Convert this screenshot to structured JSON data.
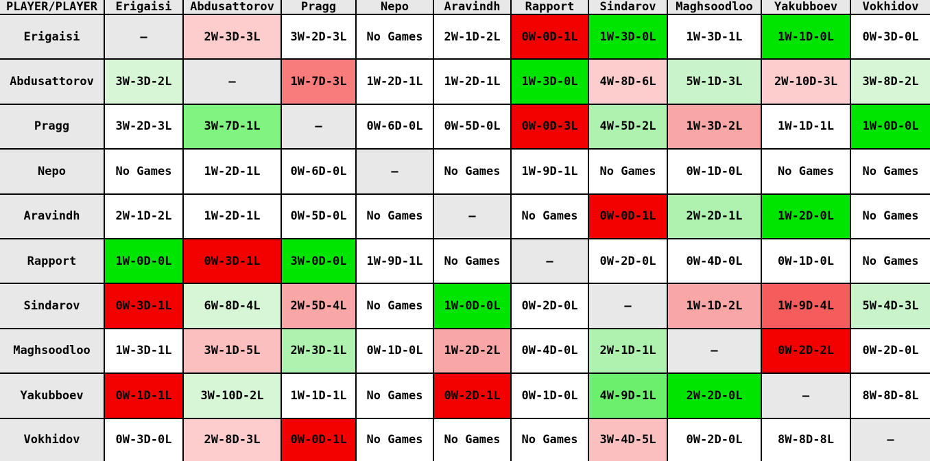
{
  "table": {
    "corner_label": "PLAYER/PLAYER",
    "players": [
      "Erigaisi",
      "Abdusattorov",
      "Pragg",
      "Nepo",
      "Aravindh",
      "Rapport",
      "Sindarov",
      "Maghsoodloo",
      "Yakubboev",
      "Vokhidov"
    ],
    "self_marker": "–",
    "no_games_label": "No Games",
    "palette": {
      "gray": "#e8e8e8",
      "white": "#ffffff",
      "g20": "#d6f6d6",
      "g25": "#c9f4c9",
      "g33": "#aff2af",
      "g50": "#80f380",
      "g60": "#6cef6c",
      "g100": "#00e500",
      "r20": "#fdcccc",
      "r25": "#fbbfbf",
      "r33": "#f8a6a6",
      "r50": "#f97c7c",
      "r60": "#f55c5c",
      "r100": "#f20000"
    },
    "rows": [
      {
        "player": "Erigaisi",
        "cells": [
          {
            "v": "–",
            "c": "gray"
          },
          {
            "v": "2W-3D-3L",
            "c": "r20"
          },
          {
            "v": "3W-2D-3L",
            "c": "white"
          },
          {
            "v": "No Games",
            "c": "white"
          },
          {
            "v": "2W-1D-2L",
            "c": "white"
          },
          {
            "v": "0W-0D-1L",
            "c": "r100"
          },
          {
            "v": "1W-3D-0L",
            "c": "g100"
          },
          {
            "v": "1W-3D-1L",
            "c": "white"
          },
          {
            "v": "1W-1D-0L",
            "c": "g100"
          },
          {
            "v": "0W-3D-0L",
            "c": "white"
          }
        ]
      },
      {
        "player": "Abdusattorov",
        "cells": [
          {
            "v": "3W-3D-2L",
            "c": "g20"
          },
          {
            "v": "–",
            "c": "gray"
          },
          {
            "v": "1W-7D-3L",
            "c": "r50"
          },
          {
            "v": "1W-2D-1L",
            "c": "white"
          },
          {
            "v": "1W-2D-1L",
            "c": "white"
          },
          {
            "v": "1W-3D-0L",
            "c": "g100"
          },
          {
            "v": "4W-8D-6L",
            "c": "r20"
          },
          {
            "v": "5W-1D-3L",
            "c": "g25"
          },
          {
            "v": "2W-10D-3L",
            "c": "r20"
          },
          {
            "v": "3W-8D-2L",
            "c": "g20"
          }
        ]
      },
      {
        "player": "Pragg",
        "cells": [
          {
            "v": "3W-2D-3L",
            "c": "white"
          },
          {
            "v": "3W-7D-1L",
            "c": "g50"
          },
          {
            "v": "–",
            "c": "gray"
          },
          {
            "v": "0W-6D-0L",
            "c": "white"
          },
          {
            "v": "0W-5D-0L",
            "c": "white"
          },
          {
            "v": "0W-0D-3L",
            "c": "r100"
          },
          {
            "v": "4W-5D-2L",
            "c": "g33"
          },
          {
            "v": "1W-3D-2L",
            "c": "r33"
          },
          {
            "v": "1W-1D-1L",
            "c": "white"
          },
          {
            "v": "1W-0D-0L",
            "c": "g100"
          }
        ]
      },
      {
        "player": "Nepo",
        "cells": [
          {
            "v": "No Games",
            "c": "white"
          },
          {
            "v": "1W-2D-1L",
            "c": "white"
          },
          {
            "v": "0W-6D-0L",
            "c": "white"
          },
          {
            "v": "–",
            "c": "gray"
          },
          {
            "v": "No Games",
            "c": "white"
          },
          {
            "v": "1W-9D-1L",
            "c": "white"
          },
          {
            "v": "No Games",
            "c": "white"
          },
          {
            "v": "0W-1D-0L",
            "c": "white"
          },
          {
            "v": "No Games",
            "c": "white"
          },
          {
            "v": "No Games",
            "c": "white"
          }
        ]
      },
      {
        "player": "Aravindh",
        "cells": [
          {
            "v": "2W-1D-2L",
            "c": "white"
          },
          {
            "v": "1W-2D-1L",
            "c": "white"
          },
          {
            "v": "0W-5D-0L",
            "c": "white"
          },
          {
            "v": "No Games",
            "c": "white"
          },
          {
            "v": "–",
            "c": "gray"
          },
          {
            "v": "No Games",
            "c": "white"
          },
          {
            "v": "0W-0D-1L",
            "c": "r100"
          },
          {
            "v": "2W-2D-1L",
            "c": "g33"
          },
          {
            "v": "1W-2D-0L",
            "c": "g100"
          },
          {
            "v": "No Games",
            "c": "white"
          }
        ]
      },
      {
        "player": "Rapport",
        "cells": [
          {
            "v": "1W-0D-0L",
            "c": "g100"
          },
          {
            "v": "0W-3D-1L",
            "c": "r100"
          },
          {
            "v": "3W-0D-0L",
            "c": "g100"
          },
          {
            "v": "1W-9D-1L",
            "c": "white"
          },
          {
            "v": "No Games",
            "c": "white"
          },
          {
            "v": "–",
            "c": "gray"
          },
          {
            "v": "0W-2D-0L",
            "c": "white"
          },
          {
            "v": "0W-4D-0L",
            "c": "white"
          },
          {
            "v": "0W-1D-0L",
            "c": "white"
          },
          {
            "v": "No Games",
            "c": "white"
          }
        ]
      },
      {
        "player": "Sindarov",
        "cells": [
          {
            "v": "0W-3D-1L",
            "c": "r100"
          },
          {
            "v": "6W-8D-4L",
            "c": "g20"
          },
          {
            "v": "2W-5D-4L",
            "c": "r33"
          },
          {
            "v": "No Games",
            "c": "white"
          },
          {
            "v": "1W-0D-0L",
            "c": "g100"
          },
          {
            "v": "0W-2D-0L",
            "c": "white"
          },
          {
            "v": "–",
            "c": "gray"
          },
          {
            "v": "1W-1D-2L",
            "c": "r33"
          },
          {
            "v": "1W-9D-4L",
            "c": "r60"
          },
          {
            "v": "5W-4D-3L",
            "c": "g25"
          }
        ]
      },
      {
        "player": "Maghsoodloo",
        "cells": [
          {
            "v": "1W-3D-1L",
            "c": "white"
          },
          {
            "v": "3W-1D-5L",
            "c": "r25"
          },
          {
            "v": "2W-3D-1L",
            "c": "g33"
          },
          {
            "v": "0W-1D-0L",
            "c": "white"
          },
          {
            "v": "1W-2D-2L",
            "c": "r33"
          },
          {
            "v": "0W-4D-0L",
            "c": "white"
          },
          {
            "v": "2W-1D-1L",
            "c": "g33"
          },
          {
            "v": "–",
            "c": "gray"
          },
          {
            "v": "0W-2D-2L",
            "c": "r100"
          },
          {
            "v": "0W-2D-0L",
            "c": "white"
          }
        ]
      },
      {
        "player": "Yakubboev",
        "cells": [
          {
            "v": "0W-1D-1L",
            "c": "r100"
          },
          {
            "v": "3W-10D-2L",
            "c": "g20"
          },
          {
            "v": "1W-1D-1L",
            "c": "white"
          },
          {
            "v": "No Games",
            "c": "white"
          },
          {
            "v": "0W-2D-1L",
            "c": "r100"
          },
          {
            "v": "0W-1D-0L",
            "c": "white"
          },
          {
            "v": "4W-9D-1L",
            "c": "g60"
          },
          {
            "v": "2W-2D-0L",
            "c": "g100"
          },
          {
            "v": "–",
            "c": "gray"
          },
          {
            "v": "8W-8D-8L",
            "c": "white"
          }
        ]
      },
      {
        "player": "Vokhidov",
        "cells": [
          {
            "v": "0W-3D-0L",
            "c": "white"
          },
          {
            "v": "2W-8D-3L",
            "c": "r20"
          },
          {
            "v": "0W-0D-1L",
            "c": "r100"
          },
          {
            "v": "No Games",
            "c": "white"
          },
          {
            "v": "No Games",
            "c": "white"
          },
          {
            "v": "No Games",
            "c": "white"
          },
          {
            "v": "3W-4D-5L",
            "c": "r25"
          },
          {
            "v": "0W-2D-0L",
            "c": "white"
          },
          {
            "v": "8W-8D-8L",
            "c": "white"
          },
          {
            "v": "–",
            "c": "gray"
          }
        ]
      }
    ]
  },
  "chart_data": {
    "type": "table",
    "corner_label": "PLAYER/PLAYER",
    "columns": [
      "Erigaisi",
      "Abdusattorov",
      "Pragg",
      "Nepo",
      "Aravindh",
      "Rapport",
      "Sindarov",
      "Maghsoodloo",
      "Yakubboev",
      "Vokhidov"
    ],
    "rows": [
      "Erigaisi",
      "Abdusattorov",
      "Pragg",
      "Nepo",
      "Aravindh",
      "Rapport",
      "Sindarov",
      "Maghsoodloo",
      "Yakubboev",
      "Vokhidov"
    ],
    "records": [
      [
        "–",
        "2W-3D-3L",
        "3W-2D-3L",
        "No Games",
        "2W-1D-2L",
        "0W-0D-1L",
        "1W-3D-0L",
        "1W-3D-1L",
        "1W-1D-0L",
        "0W-3D-0L"
      ],
      [
        "3W-3D-2L",
        "–",
        "1W-7D-3L",
        "1W-2D-1L",
        "1W-2D-1L",
        "1W-3D-0L",
        "4W-8D-6L",
        "5W-1D-3L",
        "2W-10D-3L",
        "3W-8D-2L"
      ],
      [
        "3W-2D-3L",
        "3W-7D-1L",
        "–",
        "0W-6D-0L",
        "0W-5D-0L",
        "0W-0D-3L",
        "4W-5D-2L",
        "1W-3D-2L",
        "1W-1D-1L",
        "1W-0D-0L"
      ],
      [
        "No Games",
        "1W-2D-1L",
        "0W-6D-0L",
        "–",
        "No Games",
        "1W-9D-1L",
        "No Games",
        "0W-1D-0L",
        "No Games",
        "No Games"
      ],
      [
        "2W-1D-2L",
        "1W-2D-1L",
        "0W-5D-0L",
        "No Games",
        "–",
        "No Games",
        "0W-0D-1L",
        "2W-2D-1L",
        "1W-2D-0L",
        "No Games"
      ],
      [
        "1W-0D-0L",
        "0W-3D-1L",
        "3W-0D-0L",
        "1W-9D-1L",
        "No Games",
        "–",
        "0W-2D-0L",
        "0W-4D-0L",
        "0W-1D-0L",
        "No Games"
      ],
      [
        "0W-3D-1L",
        "6W-8D-4L",
        "2W-5D-4L",
        "No Games",
        "1W-0D-0L",
        "0W-2D-0L",
        "–",
        "1W-1D-2L",
        "1W-9D-4L",
        "5W-4D-3L"
      ],
      [
        "1W-3D-1L",
        "3W-1D-5L",
        "2W-3D-1L",
        "0W-1D-0L",
        "1W-2D-2L",
        "0W-4D-0L",
        "2W-1D-1L",
        "–",
        "0W-2D-2L",
        "0W-2D-0L"
      ],
      [
        "0W-1D-1L",
        "3W-10D-2L",
        "1W-1D-1L",
        "No Games",
        "0W-2D-1L",
        "0W-1D-0L",
        "4W-9D-1L",
        "2W-2D-0L",
        "–",
        "8W-8D-8L"
      ],
      [
        "0W-3D-0L",
        "2W-8D-3L",
        "0W-0D-1L",
        "No Games",
        "No Games",
        "No Games",
        "3W-4D-5L",
        "0W-2D-0L",
        "8W-8D-8L",
        "–"
      ]
    ],
    "cell_colors": [
      [
        "gray",
        "r20",
        "white",
        "white",
        "white",
        "r100",
        "g100",
        "white",
        "g100",
        "white"
      ],
      [
        "g20",
        "gray",
        "r50",
        "white",
        "white",
        "g100",
        "r20",
        "g25",
        "r20",
        "g20"
      ],
      [
        "white",
        "g50",
        "gray",
        "white",
        "white",
        "r100",
        "g33",
        "r33",
        "white",
        "g100"
      ],
      [
        "white",
        "white",
        "white",
        "gray",
        "white",
        "white",
        "white",
        "white",
        "white",
        "white"
      ],
      [
        "white",
        "white",
        "white",
        "white",
        "gray",
        "white",
        "r100",
        "g33",
        "g100",
        "white"
      ],
      [
        "g100",
        "r100",
        "g100",
        "white",
        "white",
        "gray",
        "white",
        "white",
        "white",
        "white"
      ],
      [
        "r100",
        "g20",
        "r33",
        "white",
        "g100",
        "white",
        "gray",
        "r33",
        "r60",
        "g25"
      ],
      [
        "white",
        "r25",
        "g33",
        "white",
        "r33",
        "white",
        "g33",
        "gray",
        "r100",
        "white"
      ],
      [
        "r100",
        "g20",
        "white",
        "white",
        "r100",
        "white",
        "g60",
        "g100",
        "gray",
        "white"
      ],
      [
        "white",
        "r20",
        "r100",
        "white",
        "white",
        "white",
        "r25",
        "white",
        "white",
        "gray"
      ]
    ]
  }
}
